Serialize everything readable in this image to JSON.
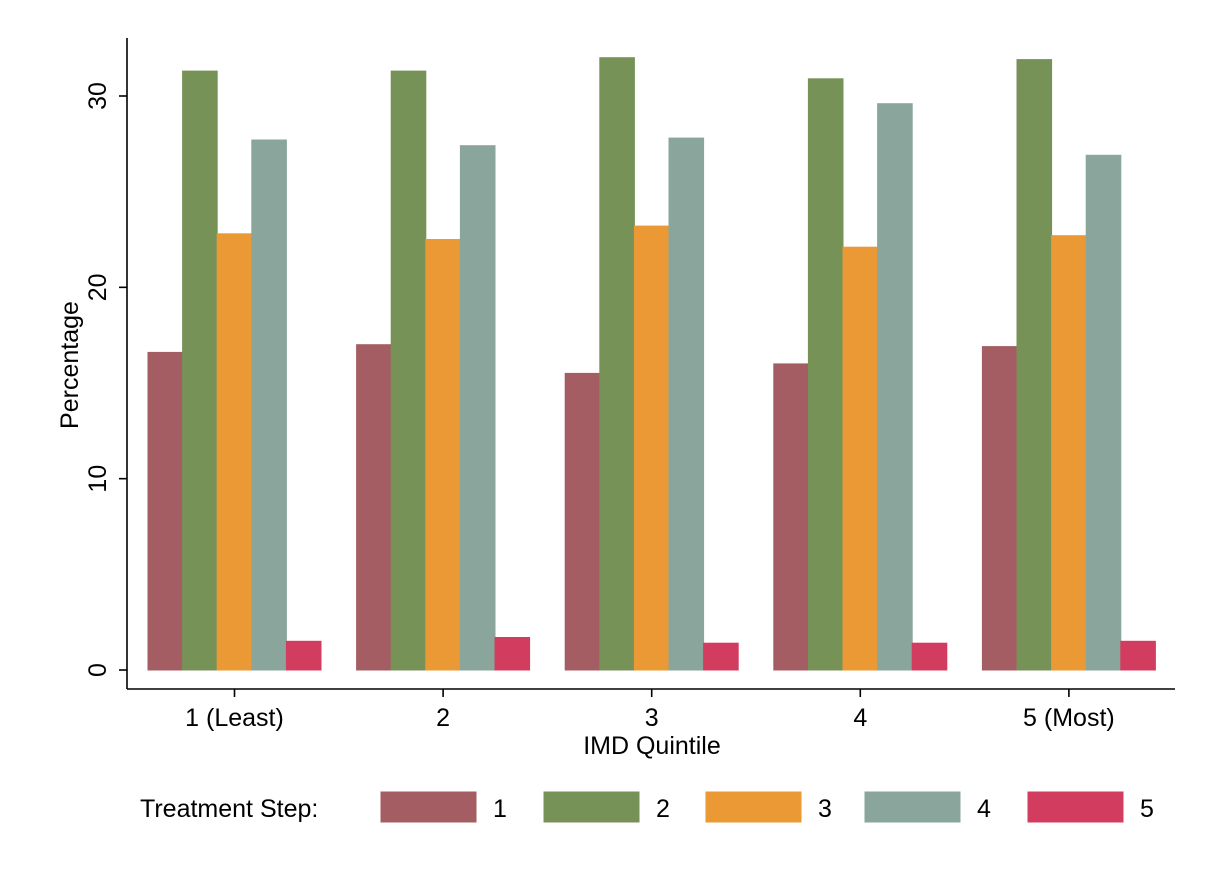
{
  "chart_data": {
    "type": "bar",
    "xlabel": "IMD Quintile",
    "ylabel": "Percentage",
    "ylim": [
      0,
      33
    ],
    "yticks": [
      0,
      10,
      20,
      30
    ],
    "categories": [
      "1 (Least)",
      "2",
      "3",
      "4",
      "5 (Most)"
    ],
    "legend": {
      "title": "Treatment Step:",
      "position": "bottom"
    },
    "series": [
      {
        "name": "1",
        "color": "#a45d63",
        "values": [
          16.6,
          17.0,
          15.5,
          16.0,
          16.9
        ]
      },
      {
        "name": "2",
        "color": "#779257",
        "values": [
          31.3,
          31.3,
          32.0,
          30.9,
          31.9
        ]
      },
      {
        "name": "3",
        "color": "#ea9934",
        "values": [
          22.8,
          22.5,
          23.2,
          22.1,
          22.7
        ]
      },
      {
        "name": "4",
        "color": "#8aa59c",
        "values": [
          27.7,
          27.4,
          27.8,
          29.6,
          26.9
        ]
      },
      {
        "name": "5",
        "color": "#d23d5f",
        "values": [
          1.5,
          1.7,
          1.4,
          1.4,
          1.5
        ]
      }
    ],
    "grid": false
  }
}
